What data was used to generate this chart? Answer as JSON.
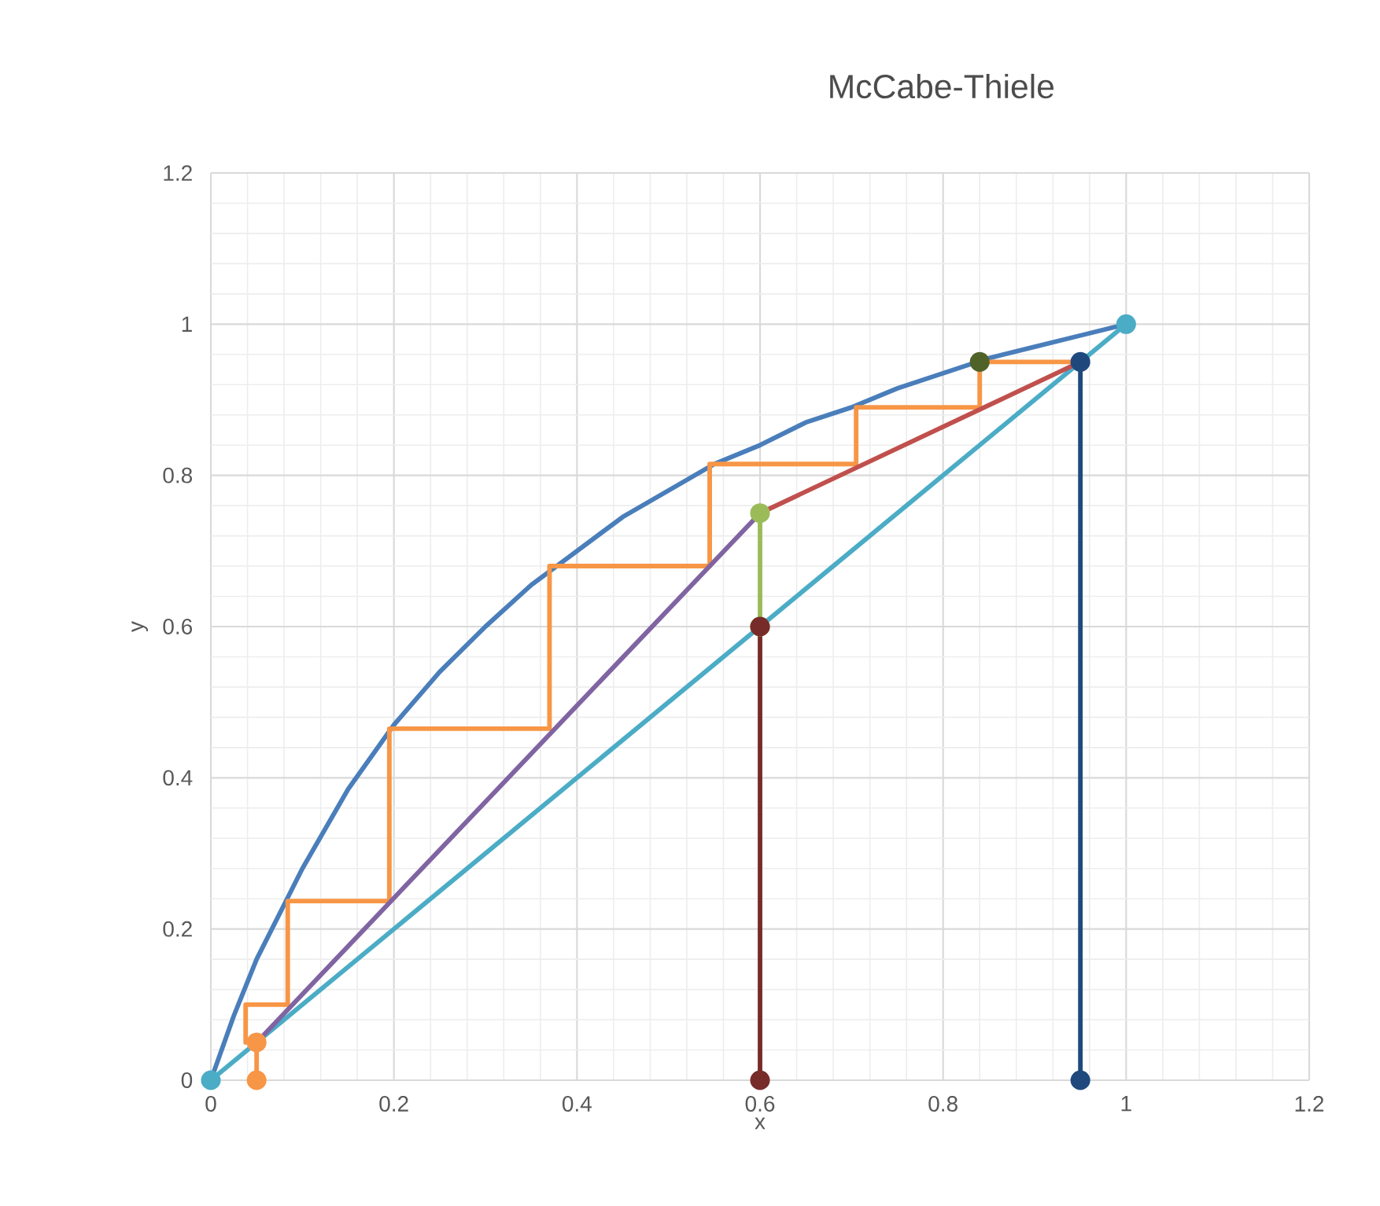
{
  "chart_data": {
    "type": "line",
    "title": "McCabe-Thiele",
    "xlabel": "x",
    "ylabel": "y",
    "xlim": [
      0,
      1.2
    ],
    "ylim": [
      0,
      1.2
    ],
    "xticks": [
      0,
      0.2,
      0.4,
      0.6,
      0.8,
      1,
      1.2
    ],
    "yticks": [
      0,
      0.2,
      0.4,
      0.6,
      0.8,
      1,
      1.2
    ],
    "grid": true,
    "series": [
      {
        "color": "#4a7ebb",
        "marker": "none",
        "x": [
          0,
          0.025,
          0.05,
          0.1,
          0.15,
          0.2,
          0.25,
          0.3,
          0.35,
          0.4,
          0.45,
          0.5,
          0.55,
          0.6,
          0.65,
          0.7,
          0.75,
          0.8,
          0.85,
          0.9,
          0.95,
          1
        ],
        "values": [
          0,
          0.085,
          0.16,
          0.28,
          0.385,
          0.47,
          0.54,
          0.6,
          0.655,
          0.7,
          0.745,
          0.78,
          0.815,
          0.84,
          0.87,
          0.89,
          0.915,
          0.935,
          0.955,
          0.97,
          0.985,
          1
        ]
      },
      {
        "color": "#4bacc6",
        "marker": "circle",
        "x": [
          0,
          1
        ],
        "values": [
          0,
          1
        ]
      },
      {
        "color": "#f79646",
        "marker": "none",
        "x": [
          0.95,
          0.84,
          0.84,
          0.705,
          0.705,
          0.545,
          0.545,
          0.37,
          0.37,
          0.195,
          0.195,
          0.084,
          0.084,
          0.038,
          0.038
        ],
        "values": [
          0.95,
          0.95,
          0.89,
          0.89,
          0.815,
          0.815,
          0.68,
          0.68,
          0.465,
          0.465,
          0.237,
          0.237,
          0.1,
          0.1,
          0.05
        ]
      },
      {
        "color": "#8064a2",
        "marker": "none",
        "x": [
          0.05,
          0.6
        ],
        "values": [
          0.05,
          0.75
        ]
      },
      {
        "color": "#c0504d",
        "marker": "none",
        "x": [
          0.6,
          0.95
        ],
        "values": [
          0.75,
          0.95
        ]
      },
      {
        "color": "#9bbb59",
        "marker": "circle",
        "x": [
          0.6,
          0.6
        ],
        "values": [
          0.6,
          0.75
        ]
      },
      {
        "color": "#772c2a",
        "marker": "circle",
        "x": [
          0.6,
          0.6
        ],
        "values": [
          0,
          0.6
        ]
      },
      {
        "color": "#1f497d",
        "marker": "circle",
        "x": [
          0.95,
          0.95
        ],
        "values": [
          0,
          0.95
        ]
      },
      {
        "color": "#f79646",
        "marker": "circle",
        "x": [
          0.05,
          0.05
        ],
        "values": [
          0,
          0.05
        ]
      },
      {
        "type": "scatter",
        "color": "#4f6228",
        "marker": "circle",
        "x": [
          0.84
        ],
        "values": [
          0.95
        ]
      }
    ]
  }
}
